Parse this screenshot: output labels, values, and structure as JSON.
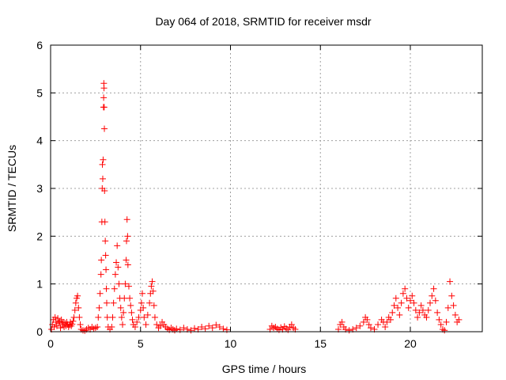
{
  "chart_data": {
    "type": "scatter",
    "title": "Day 064 of 2018, SRMTID for receiver msdr",
    "xlabel": "GPS time / hours",
    "ylabel": "SRMTID / TECUs",
    "xlim": [
      0,
      24
    ],
    "ylim": [
      0,
      6
    ],
    "xticks": [
      0,
      5,
      10,
      15,
      20
    ],
    "yticks": [
      0,
      1,
      2,
      3,
      4,
      5,
      6
    ],
    "grid": true,
    "marker": "plus",
    "marker_color": "#ff0000",
    "series": [
      {
        "name": "SRMTID",
        "points": [
          [
            0.05,
            0.05
          ],
          [
            0.1,
            0.15
          ],
          [
            0.15,
            0.25
          ],
          [
            0.2,
            0.1
          ],
          [
            0.25,
            0.3
          ],
          [
            0.3,
            0.2
          ],
          [
            0.35,
            0.12
          ],
          [
            0.4,
            0.28
          ],
          [
            0.45,
            0.18
          ],
          [
            0.5,
            0.22
          ],
          [
            0.55,
            0.08
          ],
          [
            0.6,
            0.25
          ],
          [
            0.65,
            0.15
          ],
          [
            0.7,
            0.2
          ],
          [
            0.75,
            0.1
          ],
          [
            0.8,
            0.18
          ],
          [
            0.85,
            0.12
          ],
          [
            0.9,
            0.2
          ],
          [
            0.95,
            0.15
          ],
          [
            1.0,
            0.1
          ],
          [
            1.05,
            0.14
          ],
          [
            1.1,
            0.2
          ],
          [
            1.15,
            0.12
          ],
          [
            1.2,
            0.16
          ],
          [
            1.25,
            0.22
          ],
          [
            1.3,
            0.3
          ],
          [
            1.35,
            0.45
          ],
          [
            1.4,
            0.6
          ],
          [
            1.45,
            0.7
          ],
          [
            1.5,
            0.75
          ],
          [
            1.55,
            0.5
          ],
          [
            1.6,
            0.3
          ],
          [
            1.65,
            0.15
          ],
          [
            1.7,
            0.05
          ],
          [
            1.8,
            0.03
          ],
          [
            1.9,
            0.02
          ],
          [
            2.0,
            0.05
          ],
          [
            2.1,
            0.08
          ],
          [
            2.2,
            0.05
          ],
          [
            2.3,
            0.1
          ],
          [
            2.4,
            0.06
          ],
          [
            2.5,
            0.08
          ],
          [
            2.6,
            0.1
          ],
          [
            2.65,
            0.3
          ],
          [
            2.7,
            0.5
          ],
          [
            2.75,
            0.8
          ],
          [
            2.8,
            1.2
          ],
          [
            2.82,
            1.5
          ],
          [
            2.85,
            2.3
          ],
          [
            2.87,
            3.0
          ],
          [
            2.88,
            3.5
          ],
          [
            2.9,
            3.2
          ],
          [
            2.92,
            3.6
          ],
          [
            2.94,
            4.7
          ],
          [
            2.95,
            4.9
          ],
          [
            2.96,
            5.2
          ],
          [
            2.97,
            5.1
          ],
          [
            2.98,
            4.7
          ],
          [
            2.99,
            4.25
          ],
          [
            3.0,
            2.95
          ],
          [
            3.02,
            2.3
          ],
          [
            3.04,
            1.9
          ],
          [
            3.06,
            1.6
          ],
          [
            3.08,
            1.3
          ],
          [
            3.1,
            0.9
          ],
          [
            3.12,
            0.6
          ],
          [
            3.15,
            0.3
          ],
          [
            3.2,
            0.1
          ],
          [
            3.3,
            0.05
          ],
          [
            3.4,
            0.1
          ],
          [
            3.45,
            0.3
          ],
          [
            3.5,
            0.6
          ],
          [
            3.55,
            0.9
          ],
          [
            3.6,
            1.2
          ],
          [
            3.65,
            1.45
          ],
          [
            3.7,
            1.8
          ],
          [
            3.75,
            1.35
          ],
          [
            3.8,
            1.0
          ],
          [
            3.85,
            0.7
          ],
          [
            3.9,
            0.5
          ],
          [
            3.95,
            0.3
          ],
          [
            4.0,
            0.15
          ],
          [
            4.05,
            0.4
          ],
          [
            4.1,
            0.7
          ],
          [
            4.15,
            1.0
          ],
          [
            4.2,
            1.5
          ],
          [
            4.22,
            1.9
          ],
          [
            4.25,
            2.35
          ],
          [
            4.28,
            2.0
          ],
          [
            4.3,
            1.4
          ],
          [
            4.35,
            0.95
          ],
          [
            4.4,
            0.7
          ],
          [
            4.45,
            0.55
          ],
          [
            4.5,
            0.4
          ],
          [
            4.55,
            0.25
          ],
          [
            4.6,
            0.15
          ],
          [
            4.7,
            0.1
          ],
          [
            4.8,
            0.2
          ],
          [
            4.9,
            0.3
          ],
          [
            5.0,
            0.45
          ],
          [
            5.05,
            0.6
          ],
          [
            5.1,
            0.8
          ],
          [
            5.15,
            0.5
          ],
          [
            5.2,
            0.3
          ],
          [
            5.3,
            0.15
          ],
          [
            5.4,
            0.35
          ],
          [
            5.5,
            0.6
          ],
          [
            5.55,
            0.8
          ],
          [
            5.6,
            0.95
          ],
          [
            5.65,
            1.05
          ],
          [
            5.7,
            0.85
          ],
          [
            5.75,
            0.55
          ],
          [
            5.8,
            0.3
          ],
          [
            5.9,
            0.15
          ],
          [
            6.0,
            0.08
          ],
          [
            6.1,
            0.12
          ],
          [
            6.2,
            0.2
          ],
          [
            6.3,
            0.15
          ],
          [
            6.4,
            0.1
          ],
          [
            6.5,
            0.06
          ],
          [
            6.6,
            0.04
          ],
          [
            6.7,
            0.08
          ],
          [
            6.8,
            0.05
          ],
          [
            6.9,
            0.03
          ],
          [
            7.0,
            0.06
          ],
          [
            7.2,
            0.04
          ],
          [
            7.4,
            0.08
          ],
          [
            7.6,
            0.05
          ],
          [
            7.8,
            0.03
          ],
          [
            8.0,
            0.07
          ],
          [
            8.2,
            0.05
          ],
          [
            8.4,
            0.1
          ],
          [
            8.6,
            0.06
          ],
          [
            8.8,
            0.12
          ],
          [
            9.0,
            0.08
          ],
          [
            9.2,
            0.14
          ],
          [
            9.4,
            0.1
          ],
          [
            9.6,
            0.06
          ],
          [
            9.8,
            0.04
          ],
          [
            12.2,
            0.05
          ],
          [
            12.3,
            0.12
          ],
          [
            12.4,
            0.08
          ],
          [
            12.5,
            0.1
          ],
          [
            12.6,
            0.06
          ],
          [
            12.7,
            0.04
          ],
          [
            12.8,
            0.09
          ],
          [
            12.9,
            0.05
          ],
          [
            13.0,
            0.11
          ],
          [
            13.1,
            0.07
          ],
          [
            13.2,
            0.04
          ],
          [
            13.3,
            0.1
          ],
          [
            13.4,
            0.15
          ],
          [
            13.5,
            0.08
          ],
          [
            13.6,
            0.05
          ],
          [
            16.0,
            0.05
          ],
          [
            16.1,
            0.15
          ],
          [
            16.2,
            0.2
          ],
          [
            16.3,
            0.1
          ],
          [
            16.4,
            0.05
          ],
          [
            16.6,
            0.03
          ],
          [
            16.8,
            0.05
          ],
          [
            17.0,
            0.08
          ],
          [
            17.2,
            0.12
          ],
          [
            17.4,
            0.2
          ],
          [
            17.5,
            0.3
          ],
          [
            17.6,
            0.25
          ],
          [
            17.7,
            0.15
          ],
          [
            17.8,
            0.08
          ],
          [
            18.0,
            0.05
          ],
          [
            18.2,
            0.15
          ],
          [
            18.4,
            0.25
          ],
          [
            18.5,
            0.2
          ],
          [
            18.6,
            0.1
          ],
          [
            18.7,
            0.2
          ],
          [
            18.8,
            0.3
          ],
          [
            18.9,
            0.25
          ],
          [
            19.0,
            0.4
          ],
          [
            19.1,
            0.55
          ],
          [
            19.2,
            0.7
          ],
          [
            19.3,
            0.5
          ],
          [
            19.4,
            0.35
          ],
          [
            19.5,
            0.6
          ],
          [
            19.6,
            0.8
          ],
          [
            19.7,
            0.9
          ],
          [
            19.8,
            0.7
          ],
          [
            19.9,
            0.5
          ],
          [
            20.0,
            0.65
          ],
          [
            20.1,
            0.75
          ],
          [
            20.2,
            0.6
          ],
          [
            20.3,
            0.45
          ],
          [
            20.4,
            0.3
          ],
          [
            20.5,
            0.4
          ],
          [
            20.6,
            0.55
          ],
          [
            20.7,
            0.45
          ],
          [
            20.8,
            0.35
          ],
          [
            20.9,
            0.3
          ],
          [
            21.0,
            0.45
          ],
          [
            21.1,
            0.6
          ],
          [
            21.2,
            0.75
          ],
          [
            21.3,
            0.9
          ],
          [
            21.4,
            0.65
          ],
          [
            21.5,
            0.4
          ],
          [
            21.6,
            0.25
          ],
          [
            21.7,
            0.15
          ],
          [
            21.8,
            0.05
          ],
          [
            21.9,
            0.03
          ],
          [
            22.0,
            0.2
          ],
          [
            22.1,
            0.5
          ],
          [
            22.2,
            1.05
          ],
          [
            22.3,
            0.75
          ],
          [
            22.4,
            0.55
          ],
          [
            22.5,
            0.35
          ],
          [
            22.6,
            0.2
          ],
          [
            22.7,
            0.25
          ]
        ]
      }
    ]
  }
}
